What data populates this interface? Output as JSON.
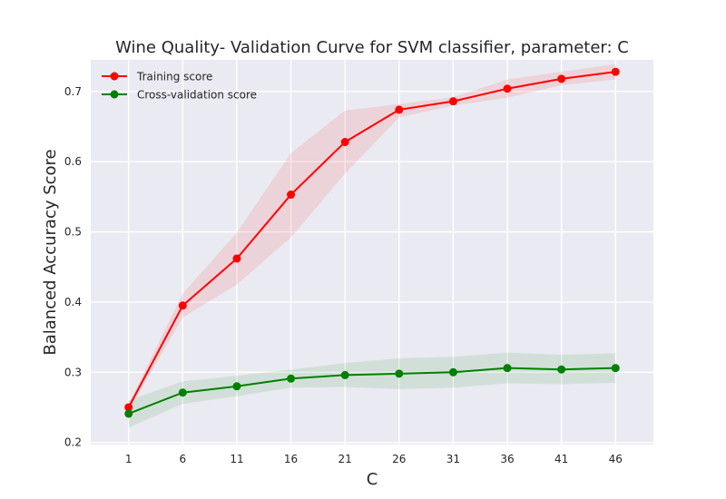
{
  "chart_data": {
    "type": "line",
    "title": "Wine Quality- Validation Curve for SVM classifier, parameter: C",
    "xlabel": "C",
    "ylabel": "Balanced Accuracy Score",
    "x": [
      1,
      6,
      11,
      16,
      21,
      26,
      31,
      36,
      41,
      46
    ],
    "xlim": [
      -2.5,
      49.5
    ],
    "ylim": [
      0.197,
      0.745
    ],
    "yticks": [
      0.2,
      0.3,
      0.4,
      0.5,
      0.6,
      0.7
    ],
    "ytick_labels": [
      "0.2",
      "0.3",
      "0.4",
      "0.5",
      "0.6",
      "0.7"
    ],
    "grid": true,
    "legend_position": "top-left",
    "background_color": "#EAEAF2",
    "series": [
      {
        "name": "Training score",
        "color": "#FF0000",
        "values": [
          0.25,
          0.395,
          0.462,
          0.553,
          0.628,
          0.674,
          0.686,
          0.704,
          0.718,
          0.728
        ],
        "lower": [
          0.245,
          0.378,
          0.425,
          0.492,
          0.583,
          0.663,
          0.68,
          0.691,
          0.709,
          0.717
        ],
        "upper": [
          0.255,
          0.412,
          0.499,
          0.612,
          0.673,
          0.682,
          0.692,
          0.717,
          0.728,
          0.739
        ]
      },
      {
        "name": "Cross-validation score",
        "color": "#008000",
        "values": [
          0.241,
          0.271,
          0.28,
          0.291,
          0.296,
          0.298,
          0.3,
          0.306,
          0.304,
          0.306
        ],
        "lower": [
          0.221,
          0.255,
          0.266,
          0.278,
          0.279,
          0.276,
          0.278,
          0.284,
          0.283,
          0.285
        ],
        "upper": [
          0.26,
          0.287,
          0.295,
          0.304,
          0.313,
          0.32,
          0.322,
          0.328,
          0.325,
          0.327
        ]
      }
    ]
  }
}
